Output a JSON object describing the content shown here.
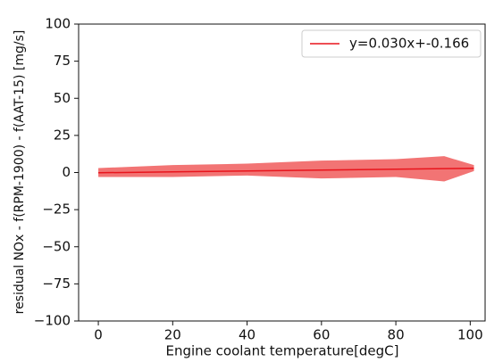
{
  "chart_data": {
    "type": "line",
    "x_label": "Engine coolant temperature[degC]",
    "y_label": "residual NOx - f(RPM-1900) - f(AAT-15) [mg/s]",
    "x": [
      0,
      20,
      40,
      60,
      80,
      93,
      101
    ],
    "series": [
      {
        "name": "y=0.030x+-0.166",
        "color": "#e8141c",
        "values": [
          -0.166,
          0.434,
          1.034,
          1.634,
          2.234,
          2.624,
          2.864
        ],
        "band_lower": [
          -3,
          -3,
          -2,
          -4,
          -3,
          -6,
          1
        ],
        "band_upper": [
          3,
          5,
          6,
          8,
          9,
          11,
          5
        ],
        "band_color": "#f27474"
      }
    ],
    "xlim": [
      -5.3,
      104
    ],
    "ylim": [
      -100,
      100
    ],
    "xticks": [
      0,
      20,
      40,
      60,
      80,
      100
    ],
    "yticks": [
      {
        "value": -100,
        "label": "−100"
      },
      {
        "value": -75,
        "label": "−75"
      },
      {
        "value": -50,
        "label": "−50"
      },
      {
        "value": -25,
        "label": "−25"
      },
      0,
      25,
      50,
      75,
      100
    ],
    "legend": "upper right"
  }
}
